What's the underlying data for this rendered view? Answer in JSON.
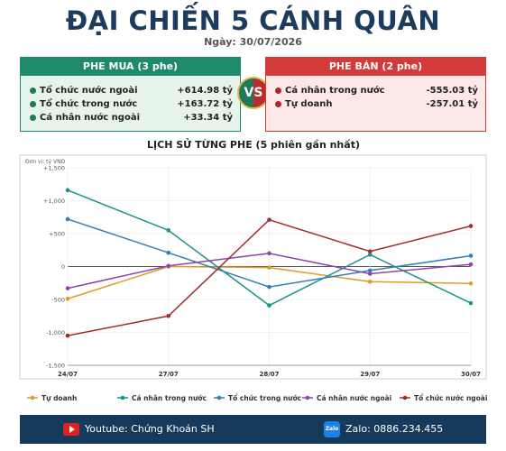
{
  "header": {
    "title": "ĐẠI CHIẾN 5 CÁNH QUÂN",
    "date": "Ngày: 30/07/2026"
  },
  "buy_side": {
    "title": "PHE MUA  (3 phe)",
    "items": [
      {
        "name": "Tổ chức nước ngoài",
        "value": "+614.98 tỷ"
      },
      {
        "name": "Tổ chức trong nước",
        "value": "+163.72 tỷ"
      },
      {
        "name": "Cá nhân nước ngoài",
        "value": "+33.34 tỷ"
      }
    ]
  },
  "vs": "VS",
  "sell_side": {
    "title": "PHE BÁN  (2 phe)",
    "items": [
      {
        "name": "Cá nhân trong nước",
        "value": "-555.03 tỷ"
      },
      {
        "name": "Tự doanh",
        "value": "-257.01 tỷ"
      }
    ]
  },
  "chart_data": {
    "type": "line",
    "title": "LỊCH SỬ TỪNG PHE (5 phiên gần nhất)",
    "unit_label": "Đơn vị: tỷ VNĐ",
    "categories": [
      "24/07",
      "27/07",
      "28/07",
      "29/07",
      "30/07"
    ],
    "series": [
      {
        "name": "Tự doanh",
        "color": "#e09a2a",
        "values": [
          -490,
          0,
          -15,
          -230,
          -257
        ]
      },
      {
        "name": "Cá nhân trong nước",
        "color": "#1a9488",
        "values": [
          1160,
          550,
          -590,
          180,
          -555
        ]
      },
      {
        "name": "Tổ chức trong nước",
        "color": "#2f7fb5",
        "values": [
          720,
          210,
          -310,
          -60,
          164
        ]
      },
      {
        "name": "Cá nhân nước ngoài",
        "color": "#8e44ad",
        "values": [
          -330,
          10,
          200,
          -110,
          33
        ]
      },
      {
        "name": "Tổ chức nước ngoài",
        "color": "#a32a2a",
        "values": [
          -1050,
          -750,
          710,
          230,
          615
        ]
      }
    ],
    "ylim": [
      -1500,
      1500
    ],
    "yticks": [
      {
        "value": -1500,
        "label": "-1,500"
      },
      {
        "value": -1000,
        "label": "-1,000"
      },
      -500,
      0,
      {
        "value": 500,
        "label": "+500"
      },
      {
        "value": 1000,
        "label": "+1,000"
      },
      {
        "value": 1500,
        "label": "+1,500"
      }
    ],
    "grid": true,
    "legend": "bottom"
  },
  "footer": {
    "youtube": "Youtube: Chứng Khoán SH",
    "zalo_icon": "Zalo",
    "zalo": "Zalo: 0886.234.455"
  }
}
